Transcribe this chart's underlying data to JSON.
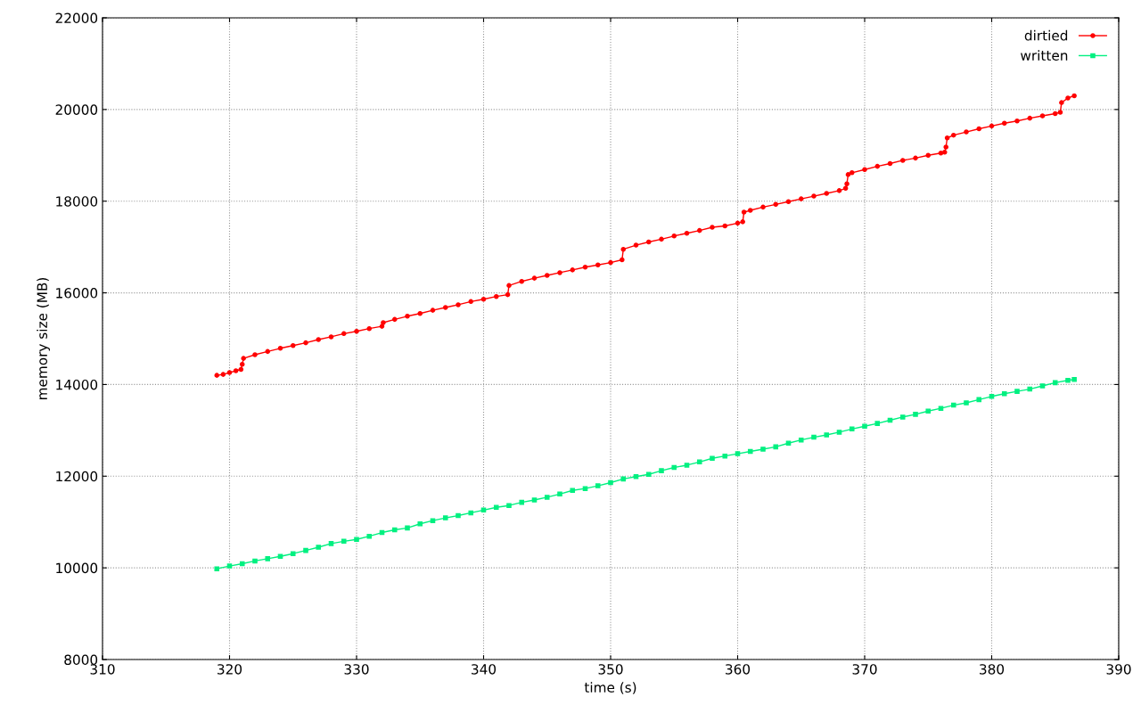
{
  "chart_data": {
    "type": "line",
    "xlabel": "time (s)",
    "ylabel": "memory size (MB)",
    "xlim": [
      310,
      390
    ],
    "xticks": [
      310,
      320,
      330,
      340,
      350,
      360,
      370,
      380,
      390
    ],
    "ylim": [
      8000,
      22000
    ],
    "yticks": [
      8000,
      10000,
      12000,
      14000,
      16000,
      18000,
      20000,
      22000
    ],
    "grid": true,
    "legend": "top right",
    "line_style": "solid",
    "series": [
      {
        "name": "dirtied",
        "color": "#ff0000",
        "marker": "circle",
        "x": [
          319.0,
          319.5,
          320.0,
          320.5,
          320.9,
          321.0,
          321.1,
          322,
          323,
          324,
          325,
          326,
          327,
          328,
          329,
          330,
          331,
          332,
          332.1,
          333,
          334,
          335,
          336,
          337,
          338,
          339,
          340,
          341,
          341.9,
          342.0,
          343,
          344,
          345,
          346,
          347,
          348,
          349,
          350,
          350.9,
          351.0,
          352,
          353,
          354,
          355,
          356,
          357,
          358,
          359,
          360,
          360.4,
          360.5,
          361,
          362,
          363,
          364,
          365,
          366,
          367,
          368,
          368.5,
          368.6,
          368.7,
          369,
          370,
          371,
          372,
          373,
          374,
          375,
          376,
          376.3,
          376.4,
          376.5,
          377,
          378,
          379,
          380,
          381,
          382,
          383,
          384,
          385,
          385.4,
          385.5,
          386,
          386.5
        ],
        "values": [
          14200,
          14220,
          14260,
          14300,
          14330,
          14440,
          14570,
          14650,
          14720,
          14790,
          14850,
          14910,
          14980,
          15040,
          15110,
          15160,
          15220,
          15270,
          15350,
          15420,
          15490,
          15550,
          15620,
          15680,
          15740,
          15810,
          15860,
          15920,
          15960,
          16160,
          16250,
          16320,
          16380,
          16440,
          16500,
          16560,
          16610,
          16660,
          16720,
          16950,
          17040,
          17110,
          17170,
          17240,
          17300,
          17360,
          17430,
          17460,
          17520,
          17550,
          17760,
          17800,
          17870,
          17930,
          17990,
          18050,
          18110,
          18170,
          18230,
          18280,
          18380,
          18580,
          18620,
          18690,
          18760,
          18820,
          18890,
          18940,
          19000,
          19050,
          19070,
          19180,
          19380,
          19440,
          19510,
          19580,
          19640,
          19700,
          19750,
          19810,
          19860,
          19910,
          19940,
          20150,
          20250,
          20300
        ]
      },
      {
        "name": "written",
        "color": "#00f080",
        "marker": "square",
        "x": [
          319,
          320,
          321,
          322,
          323,
          324,
          325,
          326,
          327,
          328,
          329,
          330,
          331,
          332,
          333,
          334,
          335,
          336,
          337,
          338,
          339,
          340,
          341,
          342,
          343,
          344,
          345,
          346,
          347,
          348,
          349,
          350,
          351,
          352,
          353,
          354,
          355,
          356,
          357,
          358,
          359,
          360,
          361,
          362,
          363,
          364,
          365,
          366,
          367,
          368,
          369,
          370,
          371,
          372,
          373,
          374,
          375,
          376,
          377,
          378,
          379,
          380,
          381,
          382,
          383,
          384,
          385,
          386,
          386.5
        ],
        "values": [
          9980,
          10040,
          10090,
          10150,
          10200,
          10250,
          10310,
          10380,
          10450,
          10530,
          10580,
          10620,
          10690,
          10770,
          10830,
          10870,
          10960,
          11030,
          11090,
          11140,
          11200,
          11260,
          11320,
          11360,
          11430,
          11480,
          11540,
          11610,
          11690,
          11730,
          11790,
          11860,
          11940,
          11990,
          12040,
          12120,
          12190,
          12240,
          12310,
          12390,
          12440,
          12490,
          12540,
          12590,
          12640,
          12720,
          12790,
          12850,
          12900,
          12960,
          13030,
          13090,
          13150,
          13220,
          13290,
          13350,
          13420,
          13480,
          13550,
          13600,
          13670,
          13740,
          13800,
          13850,
          13900,
          13970,
          14040,
          14090,
          14110
        ]
      }
    ]
  }
}
